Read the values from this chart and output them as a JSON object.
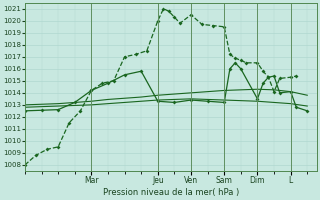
{
  "xlabel": "Pression niveau de la mer( hPa )",
  "bg_color": "#c8e8e0",
  "grid_color": "#b0d8d0",
  "line_color": "#1a6620",
  "ylim": [
    1007.5,
    1021.5
  ],
  "yticks": [
    1008,
    1009,
    1010,
    1011,
    1012,
    1013,
    1014,
    1015,
    1016,
    1017,
    1018,
    1019,
    1020,
    1021
  ],
  "day_labels": [
    "Mar",
    "Jeu",
    "Ven",
    "Sam",
    "Dim",
    "L"
  ],
  "day_positions": [
    2,
    4,
    5,
    6,
    7,
    8
  ],
  "xlim": [
    0,
    8.8
  ],
  "line1_x": [
    0,
    0.33,
    0.67,
    1.0,
    1.33,
    1.67,
    2.0,
    2.33,
    2.67,
    3.0,
    3.33,
    3.67,
    4.0,
    4.17,
    4.33,
    4.5,
    4.67,
    5.0,
    5.33,
    5.67,
    6.0,
    6.17,
    6.33,
    6.5,
    6.67,
    7.0,
    7.17,
    7.33,
    7.5,
    7.67,
    8.0,
    8.17
  ],
  "line1_y": [
    1008.0,
    1008.8,
    1009.3,
    1009.5,
    1011.5,
    1012.5,
    1014.2,
    1014.8,
    1015.0,
    1017.0,
    1017.2,
    1017.5,
    1020.0,
    1021.0,
    1020.8,
    1020.3,
    1019.8,
    1020.5,
    1019.7,
    1019.6,
    1019.5,
    1017.2,
    1016.9,
    1016.7,
    1016.5,
    1016.5,
    1015.8,
    1015.3,
    1014.1,
    1015.2,
    1015.3,
    1015.4
  ],
  "line2_x": [
    0,
    0.5,
    1,
    1.5,
    2,
    2.5,
    3,
    3.5,
    4,
    4.5,
    5,
    5.5,
    6,
    6.5,
    7,
    7.5,
    8,
    8.5
  ],
  "line2_y": [
    1013.0,
    1013.05,
    1013.1,
    1013.2,
    1013.3,
    1013.45,
    1013.55,
    1013.65,
    1013.8,
    1013.9,
    1014.0,
    1014.1,
    1014.2,
    1014.25,
    1014.3,
    1014.25,
    1014.1,
    1013.8
  ],
  "line3_x": [
    0,
    0.5,
    1,
    1.5,
    2,
    2.5,
    3,
    3.5,
    4,
    4.5,
    5,
    5.5,
    6,
    6.5,
    7,
    7.5,
    8,
    8.5
  ],
  "line3_y": [
    1012.8,
    1012.85,
    1012.9,
    1012.95,
    1013.0,
    1013.1,
    1013.2,
    1013.3,
    1013.4,
    1013.45,
    1013.5,
    1013.45,
    1013.4,
    1013.35,
    1013.3,
    1013.2,
    1013.1,
    1012.9
  ],
  "line4_x": [
    0,
    0.5,
    1.0,
    1.5,
    2.0,
    2.5,
    3.0,
    3.5,
    4.0,
    4.5,
    5.0,
    5.5,
    6.0,
    6.17,
    6.33,
    6.5,
    7.0,
    7.17,
    7.33,
    7.5,
    7.67,
    8.0,
    8.17,
    8.5
  ],
  "line4_y": [
    1012.5,
    1012.55,
    1012.6,
    1013.2,
    1014.2,
    1014.8,
    1015.5,
    1015.8,
    1013.3,
    1013.2,
    1013.4,
    1013.3,
    1013.2,
    1016.0,
    1016.5,
    1016.0,
    1013.5,
    1014.8,
    1015.3,
    1015.4,
    1014.0,
    1014.1,
    1012.8,
    1012.5
  ]
}
